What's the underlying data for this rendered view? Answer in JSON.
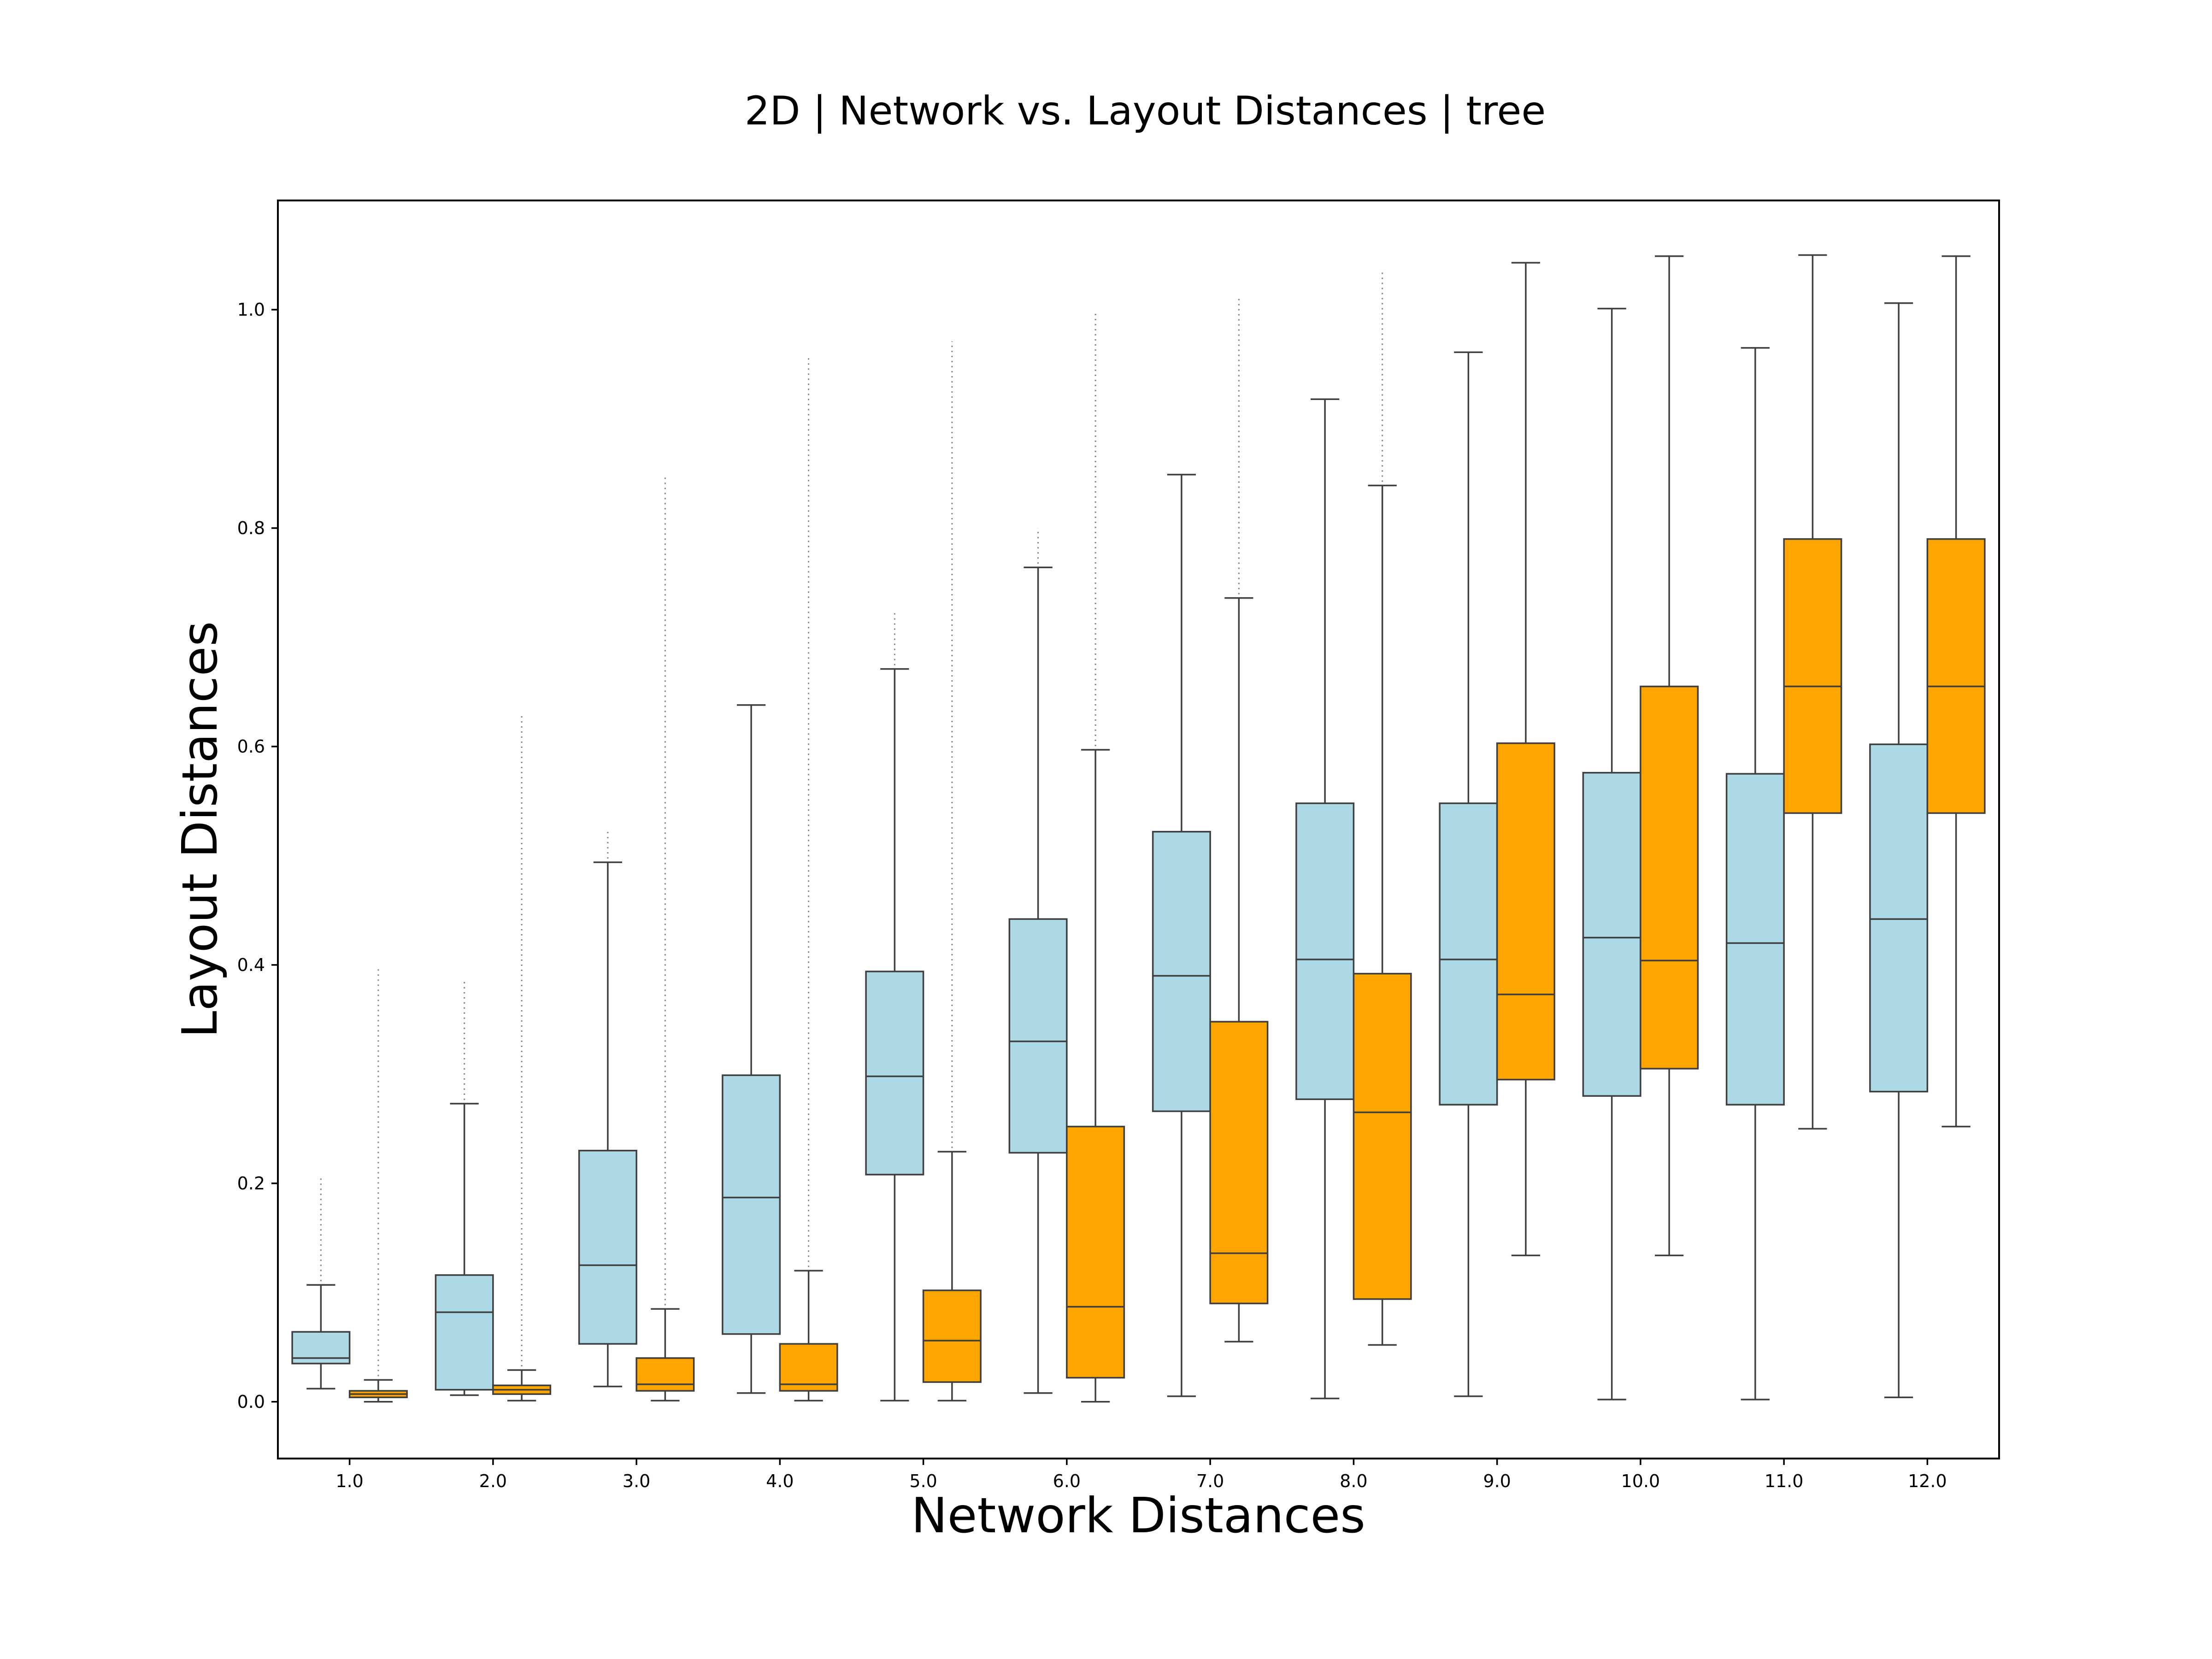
{
  "chart_data": {
    "type": "box",
    "title": "2D | Network vs. Layout Distances | tree",
    "xlabel": "Network Distances",
    "ylabel": "Layout Distances",
    "categories": [
      "1.0",
      "2.0",
      "3.0",
      "4.0",
      "5.0",
      "6.0",
      "7.0",
      "8.0",
      "9.0",
      "10.0",
      "11.0",
      "12.0"
    ],
    "ylim": [
      -0.052,
      1.1
    ],
    "yticks": [
      0.0,
      0.2,
      0.4,
      0.6,
      0.8,
      1.0
    ],
    "ytick_labels": [
      "0.0",
      "0.2",
      "0.4",
      "0.6",
      "0.8",
      "1.0"
    ],
    "grid": false,
    "colors": {
      "series_a": "#add8e6",
      "series_b": "#ffa500",
      "edge": "#3f3f3f"
    },
    "series": [
      {
        "boxes": [
          {
            "whislo": 0.012,
            "q1": 0.035,
            "med": 0.04,
            "q3": 0.064,
            "whishi": 0.107,
            "fliers_to": 0.205
          },
          {
            "whislo": 0.006,
            "q1": 0.011,
            "med": 0.082,
            "q3": 0.116,
            "whishi": 0.273,
            "fliers_to": 0.385
          },
          {
            "whislo": 0.014,
            "q1": 0.053,
            "med": 0.125,
            "q3": 0.23,
            "whishi": 0.494,
            "fliers_to": 0.525
          },
          {
            "whislo": 0.008,
            "q1": 0.062,
            "med": 0.187,
            "q3": 0.299,
            "whishi": 0.638,
            "fliers_to": null
          },
          {
            "whislo": 0.001,
            "q1": 0.208,
            "med": 0.298,
            "q3": 0.394,
            "whishi": 0.671,
            "fliers_to": 0.724
          },
          {
            "whislo": 0.008,
            "q1": 0.228,
            "med": 0.33,
            "q3": 0.442,
            "whishi": 0.764,
            "fliers_to": 0.8
          },
          {
            "whislo": 0.005,
            "q1": 0.266,
            "med": 0.39,
            "q3": 0.522,
            "whishi": 0.849,
            "fliers_to": null
          },
          {
            "whislo": 0.003,
            "q1": 0.277,
            "med": 0.405,
            "q3": 0.548,
            "whishi": 0.918,
            "fliers_to": null
          },
          {
            "whislo": 0.005,
            "q1": 0.272,
            "med": 0.405,
            "q3": 0.548,
            "whishi": 0.961,
            "fliers_to": null
          },
          {
            "whislo": 0.002,
            "q1": 0.28,
            "med": 0.425,
            "q3": 0.576,
            "whishi": 1.001,
            "fliers_to": null
          },
          {
            "whislo": 0.002,
            "q1": 0.272,
            "med": 0.42,
            "q3": 0.575,
            "whishi": 0.965,
            "fliers_to": null
          },
          {
            "whislo": 0.004,
            "q1": 0.284,
            "med": 0.442,
            "q3": 0.602,
            "whishi": 1.006,
            "fliers_to": null
          }
        ]
      },
      {
        "boxes": [
          {
            "whislo": 0.0,
            "q1": 0.004,
            "med": 0.007,
            "q3": 0.01,
            "whishi": 0.02,
            "fliers_to": 0.397
          },
          {
            "whislo": 0.001,
            "q1": 0.007,
            "med": 0.011,
            "q3": 0.015,
            "whishi": 0.029,
            "fliers_to": 0.63
          },
          {
            "whislo": 0.001,
            "q1": 0.01,
            "med": 0.016,
            "q3": 0.04,
            "whishi": 0.085,
            "fliers_to": 0.847
          },
          {
            "whislo": 0.001,
            "q1": 0.01,
            "med": 0.016,
            "q3": 0.053,
            "whishi": 0.12,
            "fliers_to": 0.957
          },
          {
            "whislo": 0.001,
            "q1": 0.018,
            "med": 0.056,
            "q3": 0.102,
            "whishi": 0.229,
            "fliers_to": 0.971
          },
          {
            "whislo": 0.0,
            "q1": 0.022,
            "med": 0.087,
            "q3": 0.252,
            "whishi": 0.597,
            "fliers_to": 0.998
          },
          {
            "whislo": 0.055,
            "q1": 0.09,
            "med": 0.136,
            "q3": 0.348,
            "whishi": 0.736,
            "fliers_to": 1.01
          },
          {
            "whislo": 0.052,
            "q1": 0.094,
            "med": 0.265,
            "q3": 0.392,
            "whishi": 0.839,
            "fliers_to": 1.034
          },
          {
            "whislo": 0.134,
            "q1": 0.295,
            "med": 0.373,
            "q3": 0.603,
            "whishi": 1.043,
            "fliers_to": null
          },
          {
            "whislo": 0.134,
            "q1": 0.305,
            "med": 0.404,
            "q3": 0.655,
            "whishi": 1.049,
            "fliers_to": null
          },
          {
            "whislo": 0.25,
            "q1": 0.539,
            "med": 0.655,
            "q3": 0.79,
            "whishi": 1.05,
            "fliers_to": null
          },
          {
            "whislo": 0.252,
            "q1": 0.539,
            "med": 0.655,
            "q3": 0.79,
            "whishi": 1.049,
            "fliers_to": null
          }
        ]
      }
    ]
  }
}
